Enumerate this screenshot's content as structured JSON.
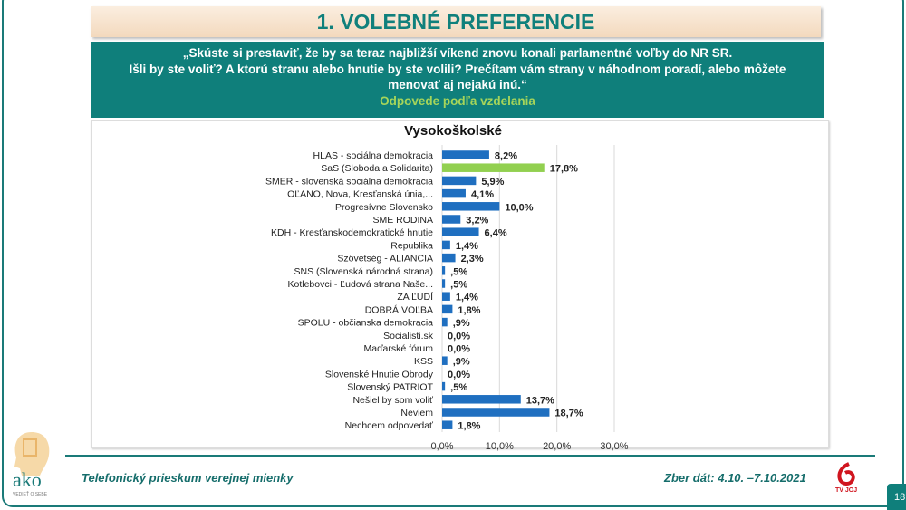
{
  "title": "1. VOLEBNÉ PREFERENCIE",
  "question": {
    "line1": "„Skúste si prestaviť, že by sa teraz najbližší víkend znovu konali parlamentné voľby do NR SR.",
    "line2": "Išli by ste voliť? A ktorú stranu alebo hnutie by ste volili? Prečítam vám strany v náhodnom poradí, alebo môžete menovať aj nejakú inú.“",
    "sub": "Odpovede podľa vzdelania"
  },
  "chart_data": {
    "type": "bar",
    "orientation": "horizontal",
    "title": "Vysokoškolské",
    "categories": [
      "HLAS - sociálna demokracia",
      "SaS (Sloboda a Solidarita)",
      "SMER - slovenská sociálna demokracia",
      "OĽANO, Nova, Kresťanská únia,...",
      "Progresívne Slovensko",
      "SME RODINA",
      "KDH - Kresťanskodemokratické hnutie",
      "Republika",
      "Szövetség - ALIANCIA",
      "SNS (Slovenská národná strana)",
      "Kotlebovci - Ľudová strana Naše...",
      "ZA ĽUDÍ",
      "DOBRÁ VOĽBA",
      "SPOLU - občianska demokracia",
      "Socialisti.sk",
      "Maďarské fórum",
      "KSS",
      "Slovenské Hnutie Obrody",
      "Slovenský PATRIOT",
      "Nešiel by som voliť",
      "Neviem",
      "Nechcem odpovedať"
    ],
    "values": [
      8.2,
      17.8,
      5.9,
      4.1,
      10.0,
      3.2,
      6.4,
      1.4,
      2.3,
      0.5,
      0.5,
      1.4,
      1.8,
      0.9,
      0.0,
      0.0,
      0.9,
      0.0,
      0.5,
      13.7,
      18.7,
      1.8
    ],
    "labels": [
      "8,2%",
      "17,8%",
      "5,9%",
      "4,1%",
      "10,0%",
      "3,2%",
      "6,4%",
      "1,4%",
      "2,3%",
      ",5%",
      ",5%",
      "1,4%",
      "1,8%",
      ",9%",
      "0,0%",
      "0,0%",
      ",9%",
      "0,0%",
      ",5%",
      "13,7%",
      "18,7%",
      "1,8%"
    ],
    "highlight_index": 1,
    "colors": {
      "default": "#1f6fc0",
      "highlight": "#92d050"
    },
    "xlim": [
      0,
      30
    ],
    "xticks": [
      "0,0%",
      "10,0%",
      "20,0%",
      "30,0%"
    ],
    "grid": true
  },
  "footer": {
    "left": "Telefonický prieskum verejnej mienky",
    "right": "Zber dát: 4.10. –7.10.2021",
    "page": "18",
    "logo": "ako",
    "logo_tagline": "VEDIEŤ O SEBE",
    "partner": "TV JOJ"
  }
}
